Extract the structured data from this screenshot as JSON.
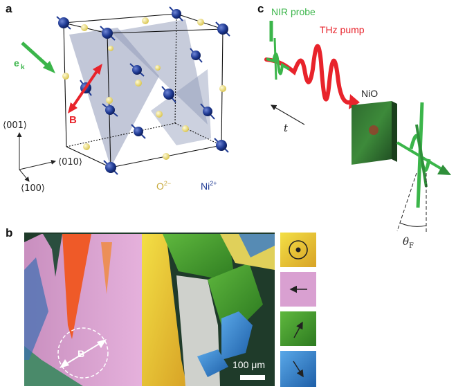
{
  "panels": {
    "a": {
      "label": "a",
      "e_vector": "e",
      "e_subscript": "k",
      "b_vector": "B",
      "axes": [
        "⟨001⟩",
        "⟨010⟩",
        "⟨100⟩"
      ],
      "oxygen": "O",
      "oxygen_charge": "2−",
      "nickel": "Ni",
      "nickel_charge": "2+"
    },
    "b": {
      "label": "b",
      "b_vector": "B",
      "scale_bar": "100 μm"
    },
    "c": {
      "label": "c",
      "probe": "NIR probe",
      "pump": "THz pump",
      "sample": "NiO",
      "time": "t",
      "faraday": "θ",
      "faraday_sub": "F"
    }
  },
  "colors": {
    "nickel": "#1f3a93",
    "oxygen": "#f2e27a",
    "plane": "#8f99b8",
    "probe_green": "#3bb54a",
    "pump_red": "#e8232b",
    "domain_pink": "#d99ad0",
    "domain_yellow": "#e8cf2e",
    "domain_green": "#4aa02c",
    "domain_blue": "#2f7fc8"
  },
  "icons": [
    "dot-circle-icon",
    "arrow-left-icon",
    "arrow-up-right-icon",
    "arrow-down-right-icon"
  ]
}
